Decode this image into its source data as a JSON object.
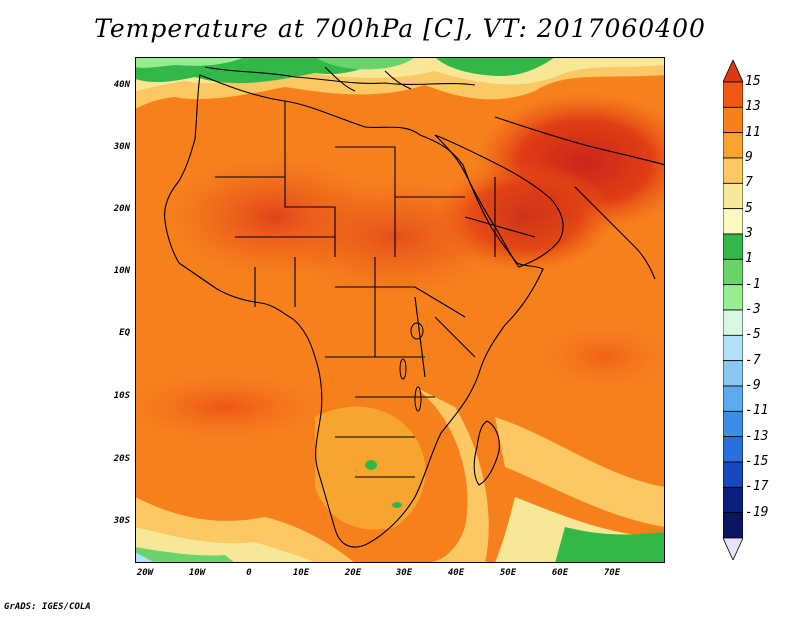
{
  "title": "Temperature at 700hPa [C], VT: 2017060400",
  "credit": "GrADS: IGES/COLA",
  "map": {
    "lon_range": [
      -22,
      80
    ],
    "lat_range": [
      -37,
      45
    ],
    "field": "Temperature at 700hPa",
    "units": "C",
    "y_ticks": [
      {
        "lat": 40,
        "label": "40N"
      },
      {
        "lat": 30,
        "label": "30N"
      },
      {
        "lat": 20,
        "label": "20N"
      },
      {
        "lat": 10,
        "label": "10N"
      },
      {
        "lat": 0,
        "label": "EQ"
      },
      {
        "lat": -10,
        "label": "10S"
      },
      {
        "lat": -20,
        "label": "20S"
      },
      {
        "lat": -30,
        "label": "30S"
      }
    ],
    "x_ticks": [
      {
        "lon": -20,
        "label": "20W"
      },
      {
        "lon": -10,
        "label": "10W"
      },
      {
        "lon": 0,
        "label": "0"
      },
      {
        "lon": 10,
        "label": "10E"
      },
      {
        "lon": 20,
        "label": "20E"
      },
      {
        "lon": 30,
        "label": "30E"
      },
      {
        "lon": 40,
        "label": "40E"
      },
      {
        "lon": 50,
        "label": "50E"
      },
      {
        "lon": 60,
        "label": "60E"
      },
      {
        "lon": 70,
        "label": "70E"
      }
    ]
  },
  "colorbar": {
    "labels": [
      "15",
      "13",
      "11",
      "9",
      "7",
      "5",
      "3",
      "1",
      "-1",
      "-3",
      "-5",
      "-7",
      "-9",
      "-11",
      "-13",
      "-15",
      "-17",
      "-19"
    ],
    "colors": [
      "#d93a13",
      "#f05a16",
      "#f6801c",
      "#f8a530",
      "#fcc864",
      "#f7e797",
      "#fdf8c0",
      "#32b848",
      "#69d36c",
      "#96ee90",
      "#d7f8e0",
      "#b3e1f8",
      "#89c8f2",
      "#5caaf0",
      "#3c8cea",
      "#2a6fe0",
      "#1648c0",
      "#0b2080",
      "#0a1560",
      "#e8e4ff"
    ]
  }
}
